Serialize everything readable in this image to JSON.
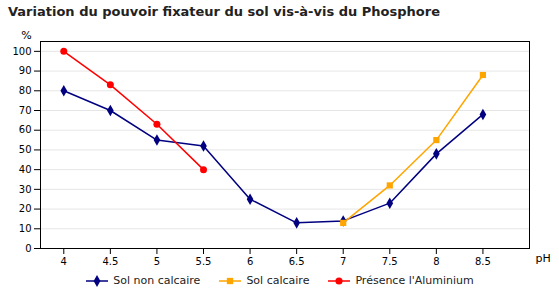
{
  "chart_data": {
    "type": "line",
    "title": "Variation du pouvoir fixateur du sol vis-à-vis du Phosphore",
    "xlabel": "pH",
    "ylabel": "%",
    "xlim": [
      3.75,
      9.0
    ],
    "ylim": [
      0,
      105
    ],
    "xticks": [
      4,
      4.5,
      5,
      5.5,
      6,
      6.5,
      7,
      7.5,
      8,
      8.5
    ],
    "yticks": [
      0,
      10,
      20,
      30,
      40,
      50,
      60,
      70,
      80,
      90,
      100
    ],
    "grid": true,
    "legend": "bottom",
    "series": [
      {
        "name": "Sol non calcaire",
        "color": "#000080",
        "marker": "diamond",
        "x": [
          4,
          4.5,
          5,
          5.5,
          6,
          6.5,
          7,
          7.5,
          8,
          8.5
        ],
        "values": [
          80,
          70,
          55,
          52,
          25,
          13,
          14,
          23,
          48,
          68
        ]
      },
      {
        "name": "Sol calcaire",
        "color": "#FFA500",
        "marker": "square",
        "x": [
          7,
          7.5,
          8,
          8.5
        ],
        "values": [
          13,
          32,
          55,
          88
        ]
      },
      {
        "name": "Présence l'Aluminium",
        "color": "#FF0000",
        "marker": "circle",
        "x": [
          4,
          4.5,
          5,
          5.5
        ],
        "values": [
          100,
          83,
          63,
          40
        ]
      }
    ]
  }
}
